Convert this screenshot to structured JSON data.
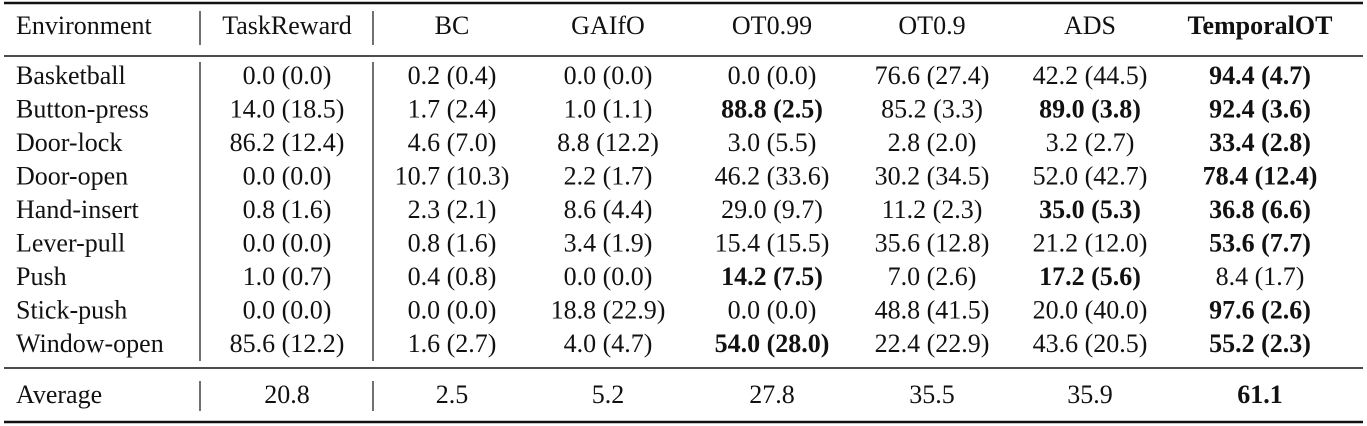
{
  "table": {
    "header": [
      "Environment",
      "TaskReward",
      "BC",
      "GAIfO",
      "OT0.99",
      "OT0.9",
      "ADS",
      {
        "text": "TemporalOT",
        "bold": true
      }
    ],
    "rows": [
      [
        "Basketball",
        "0.0 (0.0)",
        "0.2 (0.4)",
        "0.0 (0.0)",
        "0.0 (0.0)",
        "76.6 (27.4)",
        "42.2 (44.5)",
        {
          "text": "94.4 (4.7)",
          "bold": true
        }
      ],
      [
        "Button-press",
        "14.0 (18.5)",
        "1.7 (2.4)",
        "1.0 (1.1)",
        {
          "text": "88.8 (2.5)",
          "bold": true
        },
        "85.2 (3.3)",
        {
          "text": "89.0 (3.8)",
          "bold": true
        },
        {
          "text": "92.4 (3.6)",
          "bold": true
        }
      ],
      [
        "Door-lock",
        "86.2 (12.4)",
        "4.6 (7.0)",
        "8.8 (12.2)",
        "3.0 (5.5)",
        "2.8 (2.0)",
        "3.2 (2.7)",
        {
          "text": "33.4 (2.8)",
          "bold": true
        }
      ],
      [
        "Door-open",
        "0.0 (0.0)",
        "10.7 (10.3)",
        "2.2 (1.7)",
        "46.2 (33.6)",
        "30.2 (34.5)",
        "52.0 (42.7)",
        {
          "text": "78.4 (12.4)",
          "bold": true
        }
      ],
      [
        "Hand-insert",
        "0.8 (1.6)",
        "2.3 (2.1)",
        "8.6 (4.4)",
        "29.0 (9.7)",
        "11.2 (2.3)",
        {
          "text": "35.0 (5.3)",
          "bold": true
        },
        {
          "text": "36.8 (6.6)",
          "bold": true
        }
      ],
      [
        "Lever-pull",
        "0.0 (0.0)",
        "0.8 (1.6)",
        "3.4 (1.9)",
        "15.4 (15.5)",
        "35.6 (12.8)",
        "21.2 (12.0)",
        {
          "text": "53.6 (7.7)",
          "bold": true
        }
      ],
      [
        "Push",
        "1.0 (0.7)",
        "0.4 (0.8)",
        "0.0 (0.0)",
        {
          "text": "14.2 (7.5)",
          "bold": true
        },
        "7.0 (2.6)",
        {
          "text": "17.2 (5.6)",
          "bold": true
        },
        "8.4 (1.7)"
      ],
      [
        "Stick-push",
        "0.0 (0.0)",
        "0.0 (0.0)",
        "18.8 (22.9)",
        "0.0 (0.0)",
        "48.8 (41.5)",
        "20.0 (40.0)",
        {
          "text": "97.6 (2.6)",
          "bold": true
        }
      ],
      [
        "Window-open",
        "85.6 (12.2)",
        "1.6 (2.7)",
        "4.0 (4.7)",
        {
          "text": "54.0 (28.0)",
          "bold": true
        },
        "22.4 (22.9)",
        "43.6 (20.5)",
        {
          "text": "55.2 (2.3)",
          "bold": true
        }
      ]
    ],
    "average": [
      "Average",
      "20.8",
      "2.5",
      "5.2",
      "27.8",
      "35.5",
      "35.9",
      {
        "text": "61.1",
        "bold": true
      }
    ]
  }
}
